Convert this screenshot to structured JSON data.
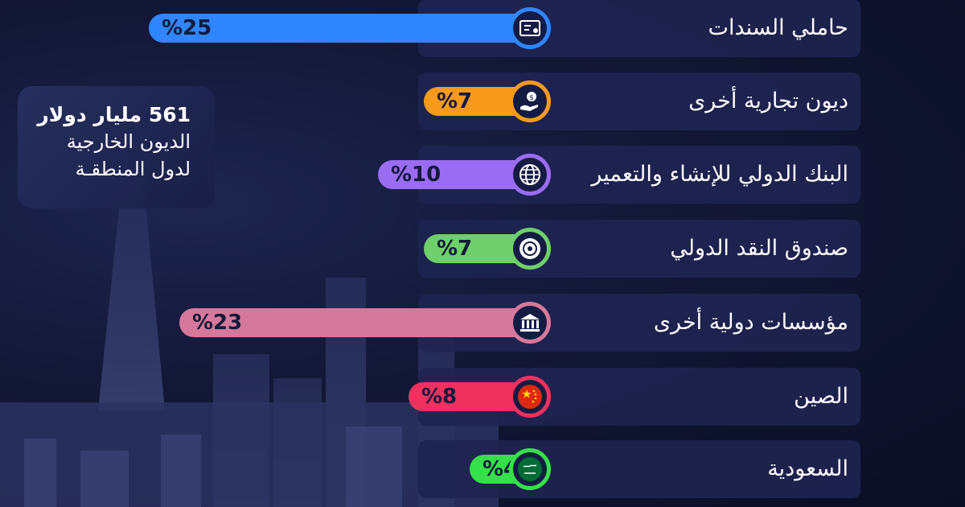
{
  "summary": {
    "amount": "561",
    "unit": "مليار دولار",
    "line2": "الديون الخارجية",
    "line3": "لدول المنطقـة"
  },
  "chart_data": {
    "type": "bar",
    "orientation": "horizontal",
    "unit": "%",
    "categories": [
      "حاملي السندات",
      "ديون تجارية أخرى",
      "البنك الدولي للإنشاء والتعمير",
      "صندوق النقد الدولي",
      "مؤسسات دولية أخرى",
      "الصين",
      "السعودية"
    ],
    "values": [
      25,
      7,
      10,
      7,
      23,
      8,
      4
    ],
    "value_labels": [
      "%25",
      "%7",
      "%10",
      "%7",
      "%23",
      "%8",
      "%4"
    ],
    "colors": [
      "#2f86ff",
      "#f79a1c",
      "#9a6cf2",
      "#6fcf6a",
      "#d5799c",
      "#f0315f",
      "#35e04a"
    ],
    "icons": [
      "bond-certificate-icon",
      "money-bag-hand-icon",
      "globe-icon",
      "imf-seal-icon",
      "institution-building-icon",
      "china-flag-icon",
      "saudi-flag-icon"
    ]
  }
}
